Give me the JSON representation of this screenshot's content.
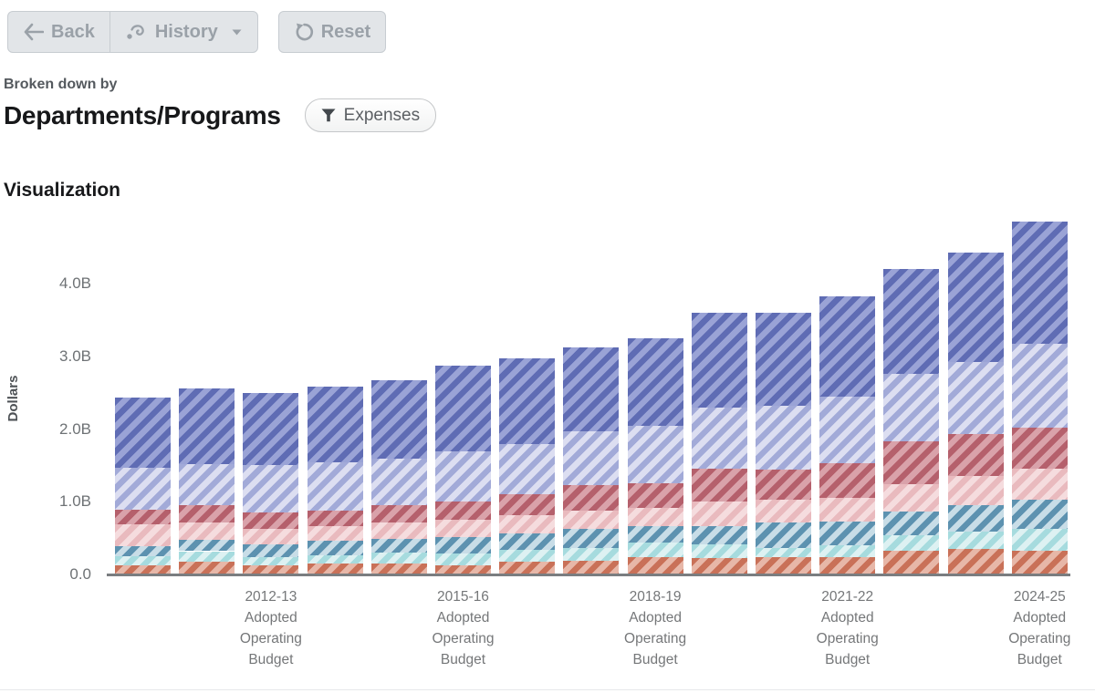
{
  "toolbar": {
    "back_label": "Back",
    "history_label": "History",
    "reset_label": "Reset"
  },
  "breakdown": {
    "eyebrow": "Broken down by",
    "title": "Departments/Programs",
    "filter_label": "Expenses"
  },
  "section": {
    "title": "Visualization"
  },
  "chart_data": {
    "type": "bar",
    "stacked": true,
    "hatch": "diagonal-light-stripes",
    "n_bars": 15,
    "ylabel": "Dollars",
    "xlabel": "",
    "title": "",
    "ylim": [
      0,
      5
    ],
    "grid": false,
    "legend": "none",
    "y_ticks": [
      {
        "value": 0,
        "label": "0.0"
      },
      {
        "value": 1,
        "label": "1.0B"
      },
      {
        "value": 2,
        "label": "2.0B"
      },
      {
        "value": 3,
        "label": "3.0B"
      },
      {
        "value": 4,
        "label": "4.0B"
      }
    ],
    "x_labels": [
      {
        "bar_index": 2,
        "lines": [
          "2012-13",
          "Adopted",
          "Operating",
          "Budget"
        ]
      },
      {
        "bar_index": 5,
        "lines": [
          "2015-16",
          "Adopted",
          "Operating",
          "Budget"
        ]
      },
      {
        "bar_index": 8,
        "lines": [
          "2018-19",
          "Adopted",
          "Operating",
          "Budget"
        ]
      },
      {
        "bar_index": 11,
        "lines": [
          "2021-22",
          "Adopted",
          "Operating",
          "Budget"
        ]
      },
      {
        "bar_index": 14,
        "lines": [
          "2024-25",
          "Adopted",
          "Operating",
          "Budget"
        ]
      }
    ],
    "unit": "billions of dollars",
    "series": [
      {
        "name": "segment-orange",
        "color": "#c97158",
        "stripe": "#e7b7a8",
        "values": [
          0.13,
          0.18,
          0.13,
          0.15,
          0.15,
          0.13,
          0.18,
          0.19,
          0.24,
          0.22,
          0.24,
          0.24,
          0.33,
          0.35,
          0.33
        ]
      },
      {
        "name": "segment-cyan-light",
        "color": "#a6dbde",
        "stripe": "#ddf1f2",
        "values": [
          0.12,
          0.14,
          0.11,
          0.11,
          0.15,
          0.16,
          0.16,
          0.17,
          0.2,
          0.2,
          0.12,
          0.16,
          0.21,
          0.24,
          0.3
        ]
      },
      {
        "name": "segment-teal",
        "color": "#5d92b0",
        "stripe": "#c8dde7",
        "values": [
          0.14,
          0.16,
          0.18,
          0.21,
          0.19,
          0.23,
          0.23,
          0.27,
          0.22,
          0.25,
          0.35,
          0.33,
          0.33,
          0.36,
          0.4
        ]
      },
      {
        "name": "segment-pink-light",
        "color": "#e9babe",
        "stripe": "#f5dcde",
        "values": [
          0.3,
          0.24,
          0.21,
          0.19,
          0.23,
          0.23,
          0.25,
          0.25,
          0.26,
          0.34,
          0.32,
          0.32,
          0.37,
          0.41,
          0.43
        ]
      },
      {
        "name": "segment-red",
        "color": "#b5606c",
        "stripe": "#d9a2aa",
        "values": [
          0.2,
          0.23,
          0.22,
          0.22,
          0.24,
          0.26,
          0.28,
          0.35,
          0.34,
          0.45,
          0.41,
          0.48,
          0.59,
          0.57,
          0.56
        ]
      },
      {
        "name": "segment-purple-light",
        "color": "#a2aad8",
        "stripe": "#dcdef1",
        "values": [
          0.58,
          0.57,
          0.66,
          0.66,
          0.63,
          0.69,
          0.69,
          0.74,
          0.78,
          0.84,
          0.88,
          0.92,
          0.93,
          0.99,
          1.16
        ]
      },
      {
        "name": "segment-blue",
        "color": "#5f6cb4",
        "stripe": "#9aa3d6",
        "values": [
          0.96,
          1.04,
          0.99,
          1.04,
          1.08,
          1.17,
          1.18,
          1.16,
          1.21,
          1.3,
          1.28,
          1.38,
          1.44,
          1.51,
          1.68
        ]
      }
    ],
    "bar_totals": [
      2.43,
      2.56,
      2.5,
      2.58,
      2.67,
      2.87,
      2.97,
      3.13,
      3.25,
      3.6,
      3.6,
      3.83,
      4.2,
      4.43,
      4.86
    ]
  }
}
